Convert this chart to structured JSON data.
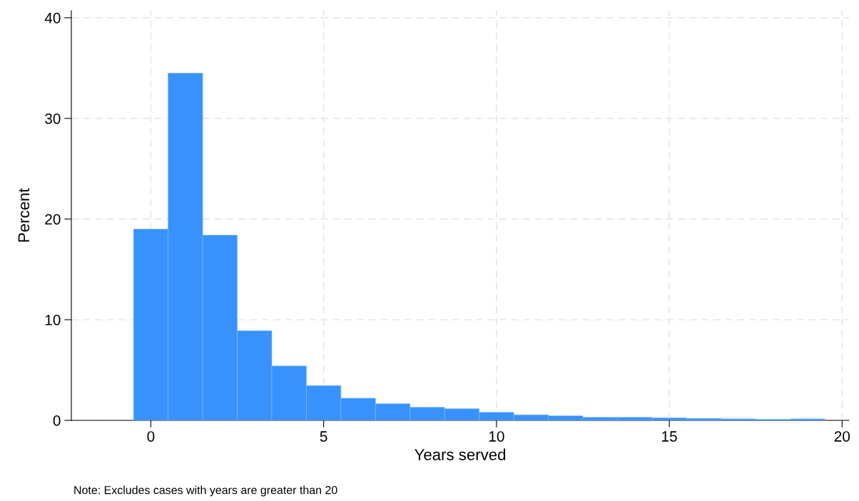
{
  "chart_data": {
    "type": "histogram",
    "xlabel": "Years served",
    "ylabel": "Percent",
    "bins": [
      -0.5,
      0.5,
      1.5,
      2.5,
      3.5,
      4.5,
      5.5,
      6.5,
      7.5,
      8.5,
      9.5,
      10.5,
      11.5,
      12.5,
      13.5,
      14.5,
      15.5,
      16.5,
      17.5,
      18.5,
      19.5
    ],
    "values": [
      19.0,
      34.5,
      18.4,
      8.9,
      5.4,
      3.45,
      2.2,
      1.65,
      1.3,
      1.15,
      0.8,
      0.55,
      0.45,
      0.3,
      0.3,
      0.25,
      0.2,
      0.15,
      0.1,
      0.15
    ],
    "color": "#3792fd",
    "xlim": [
      -2.3,
      20.2
    ],
    "ylim": [
      0,
      40.7
    ],
    "xticks": [
      0,
      5,
      10,
      15,
      20
    ],
    "yticks": [
      0,
      10,
      20,
      30,
      40
    ],
    "grid": true,
    "annotations": [
      "Note: Excludes cases with years are greater than 20"
    ]
  }
}
